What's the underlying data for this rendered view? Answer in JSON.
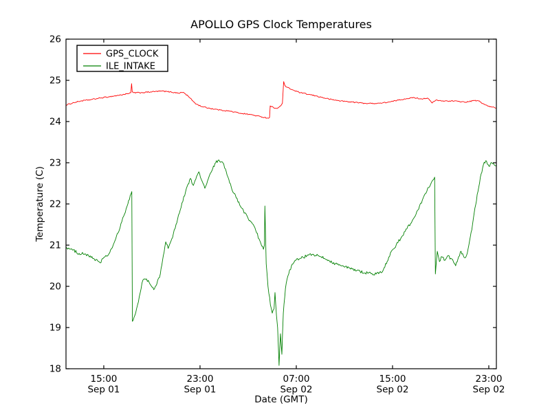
{
  "chart_data": {
    "type": "line",
    "title": "APOLLO GPS Clock Temperatures",
    "xlabel": "Date (GMT)",
    "ylabel": "Temperature (C)",
    "xlim": [
      11.86,
      47.63
    ],
    "ylim": [
      18,
      26
    ],
    "grid": false,
    "legend_position": "upper left",
    "x_unit": "hours since Sep 01 00:00 GMT",
    "x_ticks": [
      {
        "value": 15,
        "line1": "15:00",
        "line2": "Sep 01"
      },
      {
        "value": 23,
        "line1": "23:00",
        "line2": "Sep 01"
      },
      {
        "value": 31,
        "line1": "07:00",
        "line2": "Sep 02"
      },
      {
        "value": 39,
        "line1": "15:00",
        "line2": "Sep 02"
      },
      {
        "value": 47,
        "line1": "23:00",
        "line2": "Sep 02"
      }
    ],
    "y_ticks": [
      18,
      19,
      20,
      21,
      22,
      23,
      24,
      25,
      26
    ],
    "series": [
      {
        "name": "GPS_CLOCK",
        "color": "#ff0000",
        "noise": 0.013,
        "points": [
          [
            11.86,
            24.4
          ],
          [
            12.4,
            24.45
          ],
          [
            13.1,
            24.5
          ],
          [
            13.9,
            24.53
          ],
          [
            14.7,
            24.57
          ],
          [
            15.4,
            24.6
          ],
          [
            16.1,
            24.63
          ],
          [
            16.7,
            24.66
          ],
          [
            17.1,
            24.68
          ],
          [
            17.25,
            24.7
          ],
          [
            17.31,
            24.92
          ],
          [
            17.37,
            24.72
          ],
          [
            17.5,
            24.7
          ],
          [
            18.1,
            24.7
          ],
          [
            18.9,
            24.72
          ],
          [
            19.8,
            24.74
          ],
          [
            20.5,
            24.72
          ],
          [
            21.2,
            24.69
          ],
          [
            21.6,
            24.71
          ],
          [
            22.0,
            24.62
          ],
          [
            22.4,
            24.5
          ],
          [
            22.7,
            24.42
          ],
          [
            23.2,
            24.36
          ],
          [
            23.8,
            24.32
          ],
          [
            24.7,
            24.28
          ],
          [
            25.5,
            24.25
          ],
          [
            26.4,
            24.2
          ],
          [
            27.2,
            24.17
          ],
          [
            28.0,
            24.12
          ],
          [
            28.7,
            24.08
          ],
          [
            28.78,
            24.1
          ],
          [
            28.83,
            24.38
          ],
          [
            29.1,
            24.34
          ],
          [
            29.45,
            24.32
          ],
          [
            29.7,
            24.38
          ],
          [
            29.85,
            24.45
          ],
          [
            29.95,
            24.97
          ],
          [
            30.05,
            24.88
          ],
          [
            30.15,
            24.84
          ],
          [
            30.45,
            24.8
          ],
          [
            30.85,
            24.75
          ],
          [
            31.35,
            24.7
          ],
          [
            32.0,
            24.66
          ],
          [
            32.65,
            24.62
          ],
          [
            33.35,
            24.57
          ],
          [
            34.0,
            24.53
          ],
          [
            34.7,
            24.5
          ],
          [
            35.4,
            24.48
          ],
          [
            36.1,
            24.46
          ],
          [
            36.8,
            24.44
          ],
          [
            37.45,
            24.44
          ],
          [
            38.15,
            24.45
          ],
          [
            38.85,
            24.48
          ],
          [
            39.5,
            24.52
          ],
          [
            40.2,
            24.56
          ],
          [
            40.8,
            24.58
          ],
          [
            41.35,
            24.55
          ],
          [
            41.9,
            24.57
          ],
          [
            42.3,
            24.45
          ],
          [
            42.6,
            24.52
          ],
          [
            43.05,
            24.5
          ],
          [
            43.75,
            24.5
          ],
          [
            44.45,
            24.49
          ],
          [
            45.1,
            24.47
          ],
          [
            45.8,
            24.51
          ],
          [
            46.15,
            24.5
          ],
          [
            46.55,
            24.43
          ],
          [
            46.95,
            24.37
          ],
          [
            47.3,
            24.35
          ],
          [
            47.63,
            24.33
          ]
        ]
      },
      {
        "name": "ILE_INTAKE",
        "color": "#007f00",
        "noise": 0.035,
        "points": [
          [
            11.86,
            20.95
          ],
          [
            12.4,
            20.88
          ],
          [
            12.95,
            20.8
          ],
          [
            13.5,
            20.78
          ],
          [
            13.95,
            20.7
          ],
          [
            14.35,
            20.65
          ],
          [
            14.7,
            20.57
          ],
          [
            14.95,
            20.68
          ],
          [
            15.25,
            20.73
          ],
          [
            15.5,
            20.82
          ],
          [
            15.85,
            21.05
          ],
          [
            16.2,
            21.3
          ],
          [
            16.65,
            21.7
          ],
          [
            17.0,
            22.0
          ],
          [
            17.33,
            22.3
          ],
          [
            17.38,
            19.15
          ],
          [
            17.65,
            19.35
          ],
          [
            17.95,
            19.75
          ],
          [
            18.25,
            20.15
          ],
          [
            18.55,
            20.18
          ],
          [
            18.85,
            20.05
          ],
          [
            19.15,
            19.92
          ],
          [
            19.4,
            20.05
          ],
          [
            19.7,
            20.3
          ],
          [
            19.95,
            20.75
          ],
          [
            20.15,
            21.08
          ],
          [
            20.35,
            20.92
          ],
          [
            20.65,
            21.15
          ],
          [
            21.0,
            21.5
          ],
          [
            21.35,
            21.85
          ],
          [
            21.8,
            22.3
          ],
          [
            22.2,
            22.62
          ],
          [
            22.45,
            22.45
          ],
          [
            22.65,
            22.6
          ],
          [
            22.9,
            22.78
          ],
          [
            23.1,
            22.6
          ],
          [
            23.4,
            22.38
          ],
          [
            23.7,
            22.62
          ],
          [
            24.05,
            22.85
          ],
          [
            24.3,
            23.0
          ],
          [
            24.55,
            23.07
          ],
          [
            24.9,
            23.0
          ],
          [
            25.25,
            22.7
          ],
          [
            25.6,
            22.4
          ],
          [
            26.0,
            22.15
          ],
          [
            26.45,
            21.9
          ],
          [
            26.95,
            21.68
          ],
          [
            27.35,
            21.52
          ],
          [
            27.7,
            21.3
          ],
          [
            28.05,
            21.05
          ],
          [
            28.27,
            20.9
          ],
          [
            28.35,
            21.0
          ],
          [
            28.39,
            21.95
          ],
          [
            28.5,
            20.55
          ],
          [
            28.65,
            20.0
          ],
          [
            28.85,
            19.55
          ],
          [
            29.0,
            19.35
          ],
          [
            29.15,
            19.45
          ],
          [
            29.23,
            19.85
          ],
          [
            29.35,
            19.3
          ],
          [
            29.45,
            19.0
          ],
          [
            29.57,
            18.08
          ],
          [
            29.68,
            18.85
          ],
          [
            29.8,
            18.35
          ],
          [
            29.92,
            19.35
          ],
          [
            30.1,
            19.95
          ],
          [
            30.3,
            20.25
          ],
          [
            30.6,
            20.5
          ],
          [
            30.95,
            20.63
          ],
          [
            31.4,
            20.68
          ],
          [
            31.9,
            20.75
          ],
          [
            32.45,
            20.77
          ],
          [
            33.0,
            20.72
          ],
          [
            33.55,
            20.65
          ],
          [
            34.25,
            20.55
          ],
          [
            34.95,
            20.48
          ],
          [
            35.65,
            20.42
          ],
          [
            36.3,
            20.36
          ],
          [
            37.0,
            20.32
          ],
          [
            37.65,
            20.3
          ],
          [
            38.05,
            20.33
          ],
          [
            38.3,
            20.45
          ],
          [
            38.55,
            20.6
          ],
          [
            38.9,
            20.85
          ],
          [
            39.3,
            21.0
          ],
          [
            39.75,
            21.2
          ],
          [
            40.2,
            21.4
          ],
          [
            40.65,
            21.6
          ],
          [
            41.1,
            21.85
          ],
          [
            41.55,
            22.15
          ],
          [
            42.0,
            22.4
          ],
          [
            42.35,
            22.58
          ],
          [
            42.5,
            22.65
          ],
          [
            42.56,
            20.3
          ],
          [
            42.72,
            20.85
          ],
          [
            42.9,
            20.6
          ],
          [
            43.1,
            20.72
          ],
          [
            43.35,
            20.63
          ],
          [
            43.55,
            20.73
          ],
          [
            43.85,
            20.68
          ],
          [
            44.1,
            20.57
          ],
          [
            44.25,
            20.5
          ],
          [
            44.5,
            20.72
          ],
          [
            44.7,
            20.85
          ],
          [
            44.95,
            20.7
          ],
          [
            45.15,
            20.75
          ],
          [
            45.4,
            21.1
          ],
          [
            45.65,
            21.5
          ],
          [
            45.85,
            21.9
          ],
          [
            46.1,
            22.3
          ],
          [
            46.3,
            22.65
          ],
          [
            46.55,
            22.95
          ],
          [
            46.75,
            23.05
          ],
          [
            47.0,
            22.92
          ],
          [
            47.25,
            23.0
          ],
          [
            47.45,
            22.95
          ],
          [
            47.63,
            22.92
          ]
        ]
      }
    ]
  }
}
